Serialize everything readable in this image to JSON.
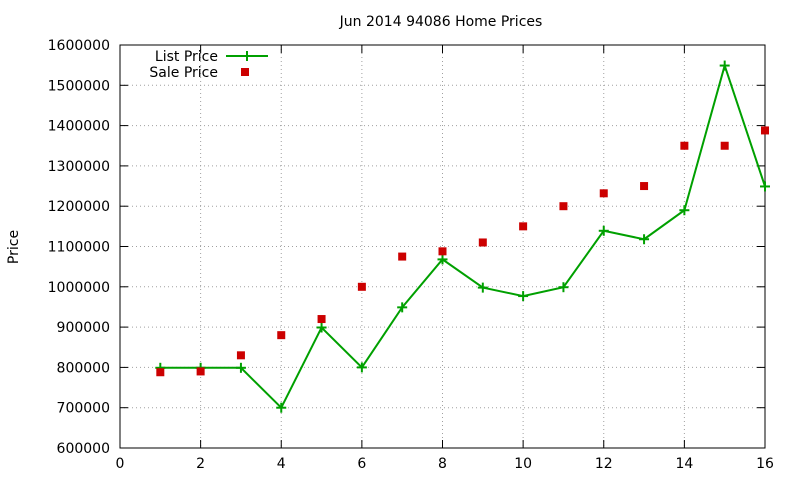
{
  "chart_data": {
    "type": "line",
    "title": "Jun 2014 94086 Home Prices",
    "xlabel": "",
    "ylabel": "Price",
    "xlim": [
      0,
      16
    ],
    "ylim": [
      600000,
      1600000
    ],
    "xticks": [
      0,
      2,
      4,
      6,
      8,
      10,
      12,
      14,
      16
    ],
    "yticks": [
      600000,
      700000,
      800000,
      900000,
      1000000,
      1100000,
      1200000,
      1300000,
      1400000,
      1500000,
      1600000
    ],
    "grid": true,
    "legend_position": "top-left",
    "series": [
      {
        "name": "List Price",
        "style": "line-with-plus-markers",
        "color": "#00a000",
        "x": [
          1,
          2,
          3,
          4,
          5,
          6,
          7,
          8,
          9,
          10,
          11,
          12,
          13,
          14,
          15,
          16
        ],
        "y": [
          799000,
          799000,
          799000,
          700000,
          899000,
          800000,
          949000,
          1068000,
          998000,
          977000,
          999000,
          1139000,
          1118000,
          1190000,
          1549000,
          1249000
        ]
      },
      {
        "name": "Sale Price",
        "style": "square-markers",
        "color": "#cc0000",
        "x": [
          1,
          2,
          3,
          4,
          5,
          6,
          7,
          8,
          9,
          10,
          11,
          12,
          13,
          14,
          15,
          16
        ],
        "y": [
          788000,
          790000,
          830000,
          880000,
          920000,
          1000000,
          1075000,
          1088000,
          1110000,
          1150000,
          1200000,
          1232000,
          1250000,
          1350000,
          1350000,
          1388000
        ]
      }
    ]
  }
}
